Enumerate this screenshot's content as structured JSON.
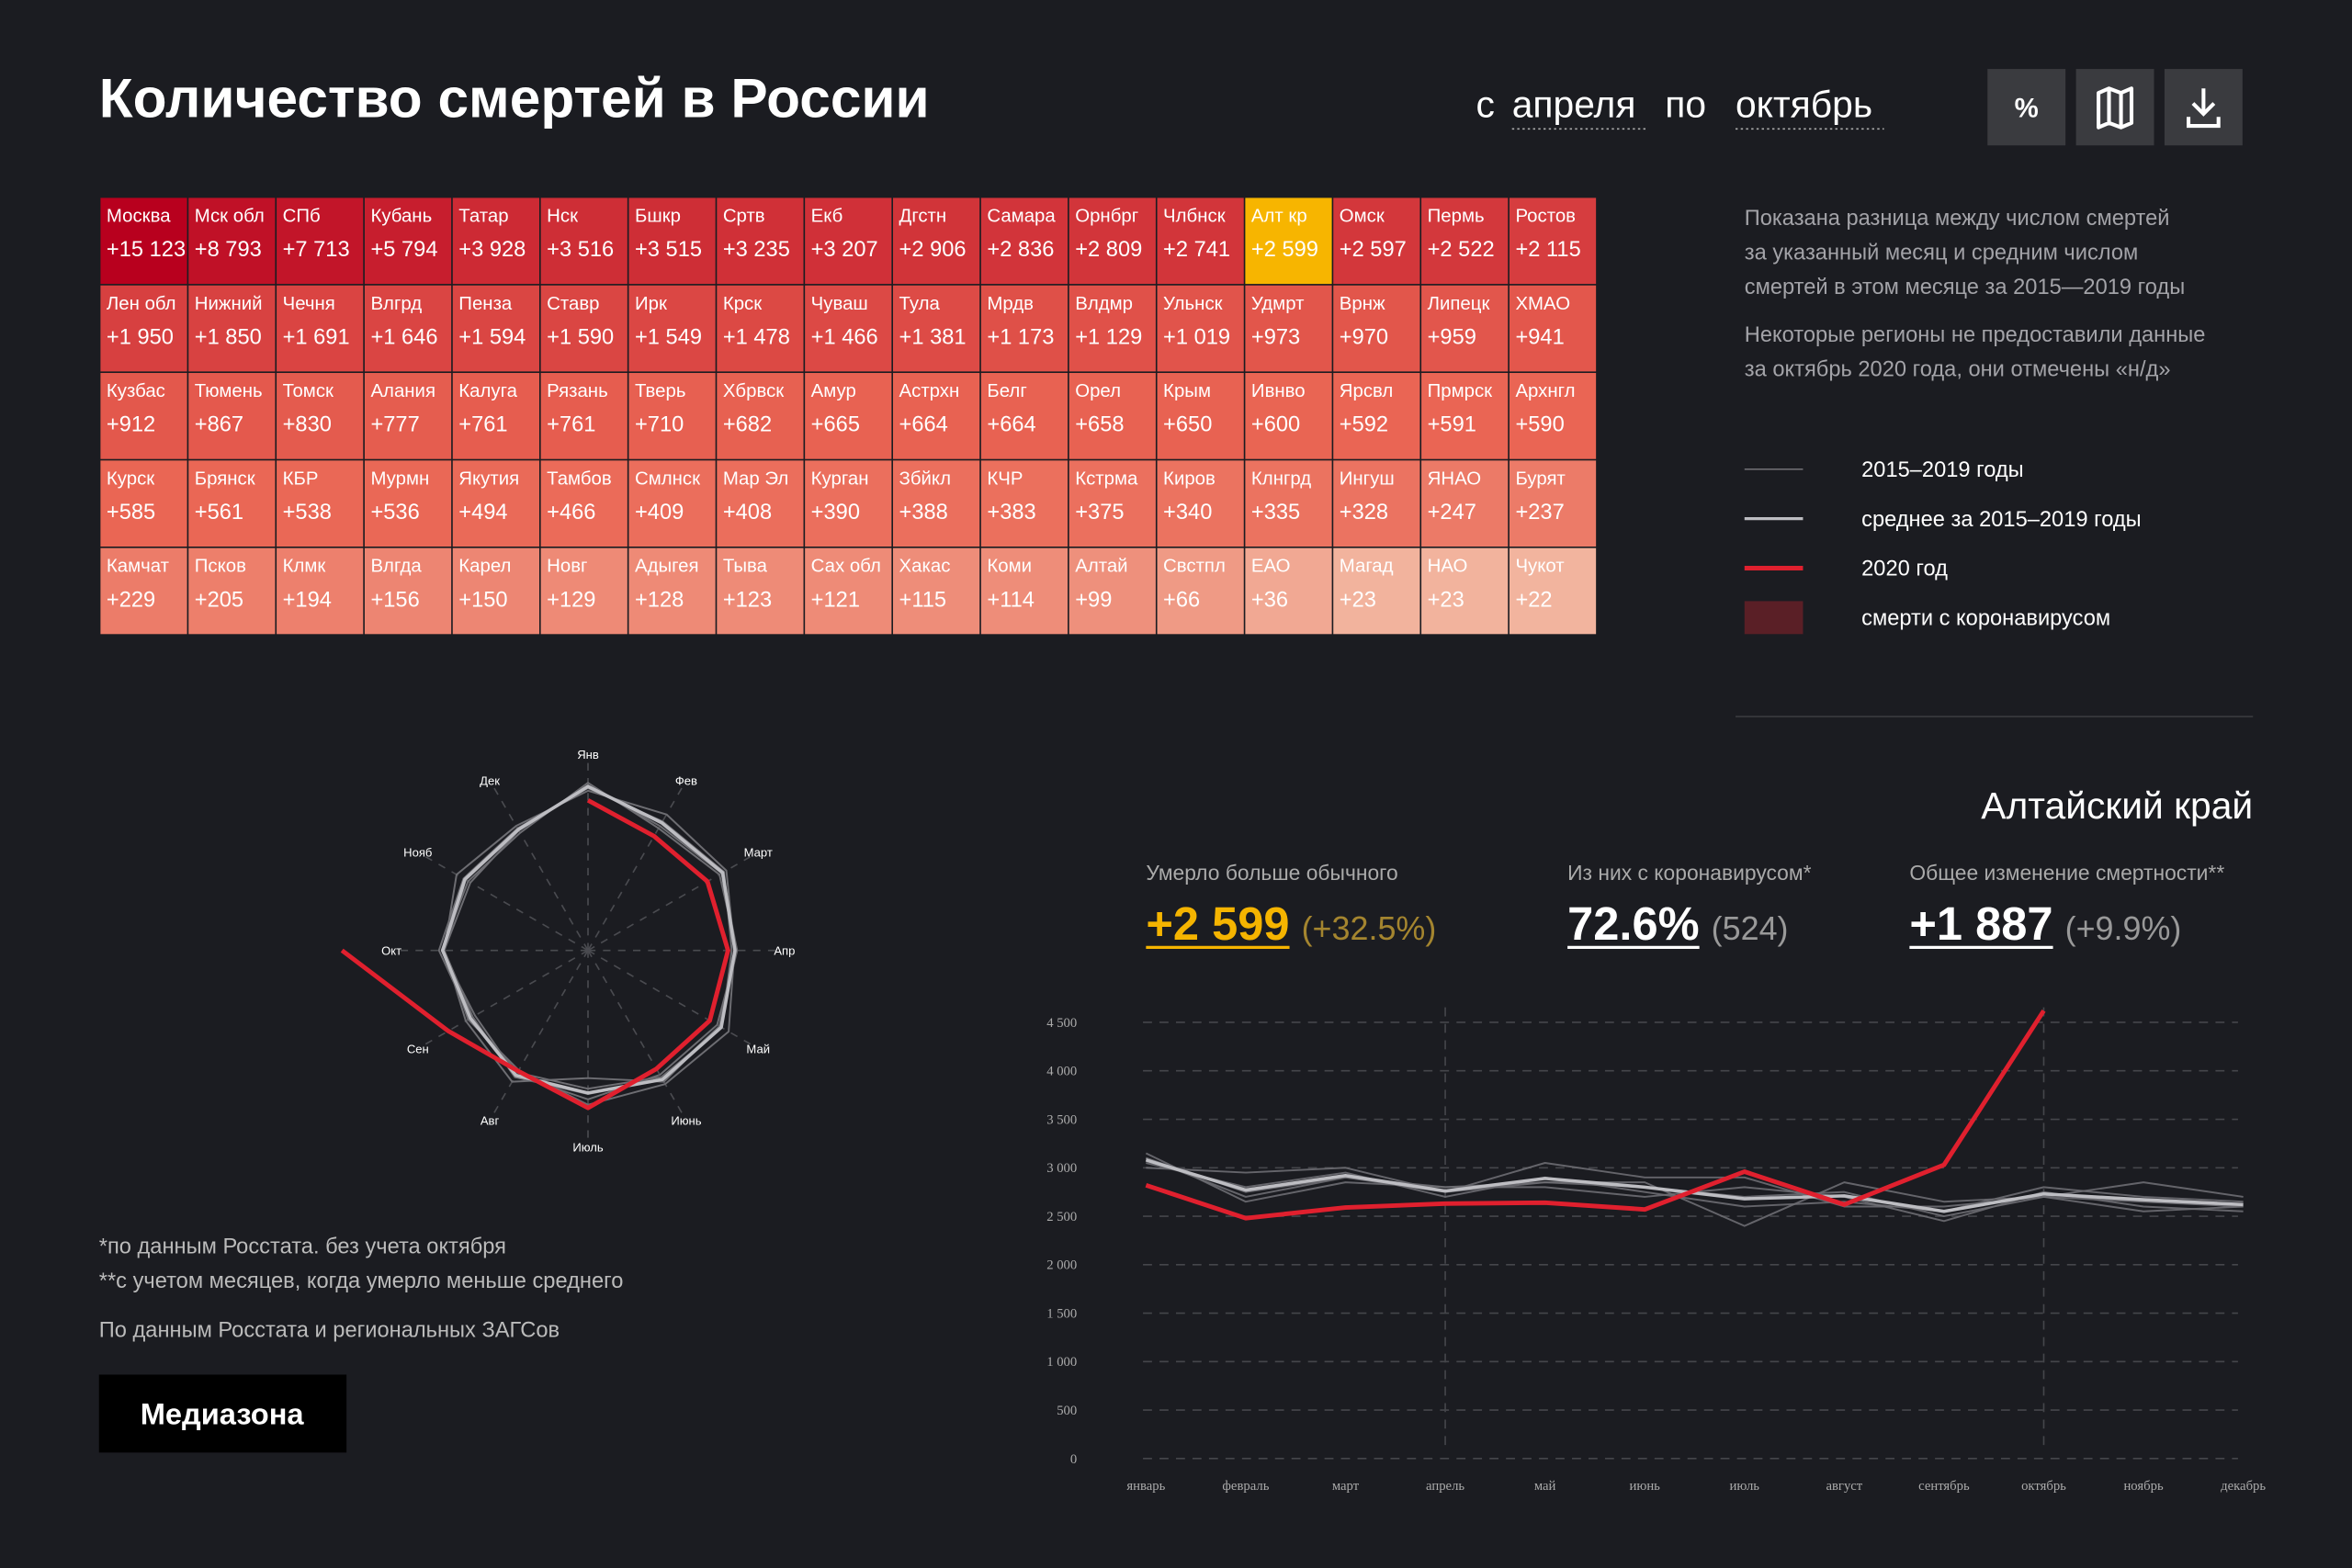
{
  "header": {
    "title": "Количество смертей в России",
    "period": {
      "from_word": "с",
      "from": "апреля",
      "to_word": "по",
      "to": "октябрь"
    },
    "buttons": [
      "%"
    ]
  },
  "grid": {
    "selected": 13,
    "cells": [
      {
        "name": "Москва",
        "value": 15123,
        "label": "+15 123"
      },
      {
        "name": "Мск обл",
        "value": 8793,
        "label": "+8 793"
      },
      {
        "name": "СПб",
        "value": 7713,
        "label": "+7 713"
      },
      {
        "name": "Кубань",
        "value": 5794,
        "label": "+5 794"
      },
      {
        "name": "Татар",
        "value": 3928,
        "label": "+3 928"
      },
      {
        "name": "Нск",
        "value": 3516,
        "label": "+3 516"
      },
      {
        "name": "Бшкр",
        "value": 3515,
        "label": "+3 515"
      },
      {
        "name": "Сртв",
        "value": 3235,
        "label": "+3 235"
      },
      {
        "name": "Екб",
        "value": 3207,
        "label": "+3 207"
      },
      {
        "name": "Дгстн",
        "value": 2906,
        "label": "+2 906"
      },
      {
        "name": "Самара",
        "value": 2836,
        "label": "+2 836"
      },
      {
        "name": "Орнбрг",
        "value": 2809,
        "label": "+2 809"
      },
      {
        "name": "Члбнск",
        "value": 2741,
        "label": "+2 741"
      },
      {
        "name": "Алт кр",
        "value": 2599,
        "label": "+2 599"
      },
      {
        "name": "Омск",
        "value": 2597,
        "label": "+2 597"
      },
      {
        "name": "Пермь",
        "value": 2522,
        "label": "+2 522"
      },
      {
        "name": "Ростов",
        "value": 2115,
        "label": "+2 115"
      },
      {
        "name": "Лен обл",
        "value": 1950,
        "label": "+1 950"
      },
      {
        "name": "Нижний",
        "value": 1850,
        "label": "+1 850"
      },
      {
        "name": "Чечня",
        "value": 1691,
        "label": "+1 691"
      },
      {
        "name": "Влгрд",
        "value": 1646,
        "label": "+1 646"
      },
      {
        "name": "Пенза",
        "value": 1594,
        "label": "+1 594"
      },
      {
        "name": "Ставр",
        "value": 1590,
        "label": "+1 590"
      },
      {
        "name": "Ирк",
        "value": 1549,
        "label": "+1 549"
      },
      {
        "name": "Крск",
        "value": 1478,
        "label": "+1 478"
      },
      {
        "name": "Чуваш",
        "value": 1466,
        "label": "+1 466"
      },
      {
        "name": "Тула",
        "value": 1381,
        "label": "+1 381"
      },
      {
        "name": "Мрдв",
        "value": 1173,
        "label": "+1 173"
      },
      {
        "name": "Влдмр",
        "value": 1129,
        "label": "+1 129"
      },
      {
        "name": "Ульнск",
        "value": 1019,
        "label": "+1 019"
      },
      {
        "name": "Удмрт",
        "value": 973,
        "label": "+973"
      },
      {
        "name": "Врнж",
        "value": 970,
        "label": "+970"
      },
      {
        "name": "Липецк",
        "value": 959,
        "label": "+959"
      },
      {
        "name": "ХМАО",
        "value": 941,
        "label": "+941"
      },
      {
        "name": "Кузбас",
        "value": 912,
        "label": "+912"
      },
      {
        "name": "Тюмень",
        "value": 867,
        "label": "+867"
      },
      {
        "name": "Томск",
        "value": 830,
        "label": "+830"
      },
      {
        "name": "Алания",
        "value": 777,
        "label": "+777"
      },
      {
        "name": "Калуга",
        "value": 761,
        "label": "+761"
      },
      {
        "name": "Рязань",
        "value": 761,
        "label": "+761"
      },
      {
        "name": "Тверь",
        "value": 710,
        "label": "+710"
      },
      {
        "name": "Хбрвск",
        "value": 682,
        "label": "+682"
      },
      {
        "name": "Амур",
        "value": 665,
        "label": "+665"
      },
      {
        "name": "Астрхн",
        "value": 664,
        "label": "+664"
      },
      {
        "name": "Белг",
        "value": 664,
        "label": "+664"
      },
      {
        "name": "Орел",
        "value": 658,
        "label": "+658"
      },
      {
        "name": "Крым",
        "value": 650,
        "label": "+650"
      },
      {
        "name": "Ивнво",
        "value": 600,
        "label": "+600"
      },
      {
        "name": "Ярсвл",
        "value": 592,
        "label": "+592"
      },
      {
        "name": "Прмрск",
        "value": 591,
        "label": "+591"
      },
      {
        "name": "Архнгл",
        "value": 590,
        "label": "+590"
      },
      {
        "name": "Курск",
        "value": 585,
        "label": "+585"
      },
      {
        "name": "Брянск",
        "value": 561,
        "label": "+561"
      },
      {
        "name": "КБР",
        "value": 538,
        "label": "+538"
      },
      {
        "name": "Мурмн",
        "value": 536,
        "label": "+536"
      },
      {
        "name": "Якутия",
        "value": 494,
        "label": "+494"
      },
      {
        "name": "Тамбов",
        "value": 466,
        "label": "+466"
      },
      {
        "name": "Смлнск",
        "value": 409,
        "label": "+409"
      },
      {
        "name": "Мар Эл",
        "value": 408,
        "label": "+408"
      },
      {
        "name": "Курган",
        "value": 390,
        "label": "+390"
      },
      {
        "name": "Збйкл",
        "value": 388,
        "label": "+388"
      },
      {
        "name": "КЧР",
        "value": 383,
        "label": "+383"
      },
      {
        "name": "Кстрма",
        "value": 375,
        "label": "+375"
      },
      {
        "name": "Киров",
        "value": 340,
        "label": "+340"
      },
      {
        "name": "Клнгрд",
        "value": 335,
        "label": "+335"
      },
      {
        "name": "Ингуш",
        "value": 328,
        "label": "+328"
      },
      {
        "name": "ЯНАО",
        "value": 247,
        "label": "+247"
      },
      {
        "name": "Бурят",
        "value": 237,
        "label": "+237"
      },
      {
        "name": "Камчат",
        "value": 229,
        "label": "+229"
      },
      {
        "name": "Псков",
        "value": 205,
        "label": "+205"
      },
      {
        "name": "Клмк",
        "value": 194,
        "label": "+194"
      },
      {
        "name": "Влгда",
        "value": 156,
        "label": "+156"
      },
      {
        "name": "Карел",
        "value": 150,
        "label": "+150"
      },
      {
        "name": "Новг",
        "value": 129,
        "label": "+129"
      },
      {
        "name": "Адыгея",
        "value": 128,
        "label": "+128"
      },
      {
        "name": "Тыва",
        "value": 123,
        "label": "+123"
      },
      {
        "name": "Сах обл",
        "value": 121,
        "label": "+121"
      },
      {
        "name": "Хакас",
        "value": 115,
        "label": "+115"
      },
      {
        "name": "Коми",
        "value": 114,
        "label": "+114"
      },
      {
        "name": "Алтай",
        "value": 99,
        "label": "+99"
      },
      {
        "name": "Свстпл",
        "value": 66,
        "label": "+66"
      },
      {
        "name": "ЕАО",
        "value": 36,
        "label": "+36"
      },
      {
        "name": "Магад",
        "value": 23,
        "label": "+23"
      },
      {
        "name": "НАО",
        "value": 23,
        "label": "+23"
      },
      {
        "name": "Чукот",
        "value": 22,
        "label": "+22"
      }
    ]
  },
  "description": [
    "Показана разница между числом смертей",
    "за указанный месяц и средним числом",
    "смертей в этом месяце за 2015—2019 годы",
    "Некоторые регионы не предоставили данные",
    "за октябрь 2020 года, они отмечены «н/д»"
  ],
  "region": {
    "title": "Алтайский край",
    "stats": [
      {
        "label": "Умерло больше обычного",
        "value": "+2 599",
        "extra": "(+32.5%)"
      },
      {
        "label": "Из них с коронавирусом*",
        "value": "72.6%",
        "extra": "(524)"
      },
      {
        "label": "Общее изменение смертности**",
        "value": "+1 887",
        "extra": "(+9.9%)"
      }
    ]
  },
  "notes": [
    "*по данным Росстата. без учета октября",
    "**с учетом месяцев, когда умерло меньше среднего"
  ],
  "source": "По данным Росстата и региональных ЗАГСов",
  "logo": "Медиазона",
  "chart_data": [
    {
      "type": "line",
      "categories": [
        "январь",
        "февраль",
        "март",
        "апрель",
        "май",
        "июнь",
        "июль",
        "август",
        "сентябрь",
        "октябрь",
        "ноябрь",
        "декабрь"
      ],
      "ylim": [
        0,
        4500
      ],
      "yticks": [
        0,
        500,
        {
          "value": 1000,
          "label": "1 000"
        },
        {
          "value": 1500,
          "label": "1 500"
        },
        {
          "value": 2000,
          "label": "2 000"
        },
        {
          "value": 2500,
          "label": "2 500"
        },
        {
          "value": 3000,
          "label": "3 000"
        },
        {
          "value": 3500,
          "label": "3 500"
        },
        {
          "value": 4000,
          "label": "4 000"
        },
        {
          "value": 4500,
          "label": "4 500"
        }
      ],
      "grid": true,
      "legend": [
        {
          "name": "2015–2019 годы",
          "color": "#6d6d72"
        },
        {
          "name": "среднее за 2015–2019 годы",
          "color": "#bdbdc2"
        },
        {
          "name": "2020 год",
          "color": "#e0202e"
        },
        {
          "name": "смерти с коронавирусом",
          "color": "#5a1f26"
        }
      ],
      "series": [
        {
          "legend": 0,
          "color": "#6d6d72",
          "values": [
            3100,
            2700,
            2900,
            2750,
            2850,
            2800,
            2700,
            2750,
            2500,
            2700,
            2650,
            2600
          ]
        },
        {
          "legend": 0,
          "color": "#6d6d72",
          "values": [
            3050,
            2800,
            2950,
            2700,
            2900,
            2750,
            2600,
            2650,
            2550,
            2800,
            2700,
            2650
          ]
        },
        {
          "legend": 0,
          "color": "#6d6d72",
          "values": [
            3150,
            2650,
            2850,
            2800,
            2800,
            2700,
            2800,
            2700,
            2450,
            2750,
            2600,
            2550
          ]
        },
        {
          "legend": 0,
          "color": "#6d6d72",
          "values": [
            3000,
            2950,
            3000,
            2750,
            3050,
            2900,
            2900,
            2600,
            2600,
            2700,
            2850,
            2700
          ]
        },
        {
          "legend": 0,
          "color": "#6d6d72",
          "values": [
            3100,
            2750,
            2900,
            2800,
            2850,
            2850,
            2400,
            2850,
            2650,
            2700,
            2550,
            2600
          ]
        },
        {
          "legend": 1,
          "color": "#bdbdc2",
          "values": [
            3080,
            2770,
            2920,
            2760,
            2890,
            2800,
            2680,
            2710,
            2550,
            2730,
            2670,
            2620
          ]
        },
        {
          "legend": 2,
          "color": "#e0202e",
          "values": [
            2820,
            2480,
            2590,
            2630,
            2640,
            2570,
            2960,
            2620,
            3030,
            4620,
            null,
            null
          ]
        }
      ]
    },
    {
      "type": "radar",
      "categories": [
        "Янв",
        "Фев",
        "Март",
        "Апр",
        "Май",
        "Июнь",
        "Июль",
        "Авг",
        "Сен",
        "Окт",
        "Нояб",
        "Дек"
      ]
    }
  ]
}
